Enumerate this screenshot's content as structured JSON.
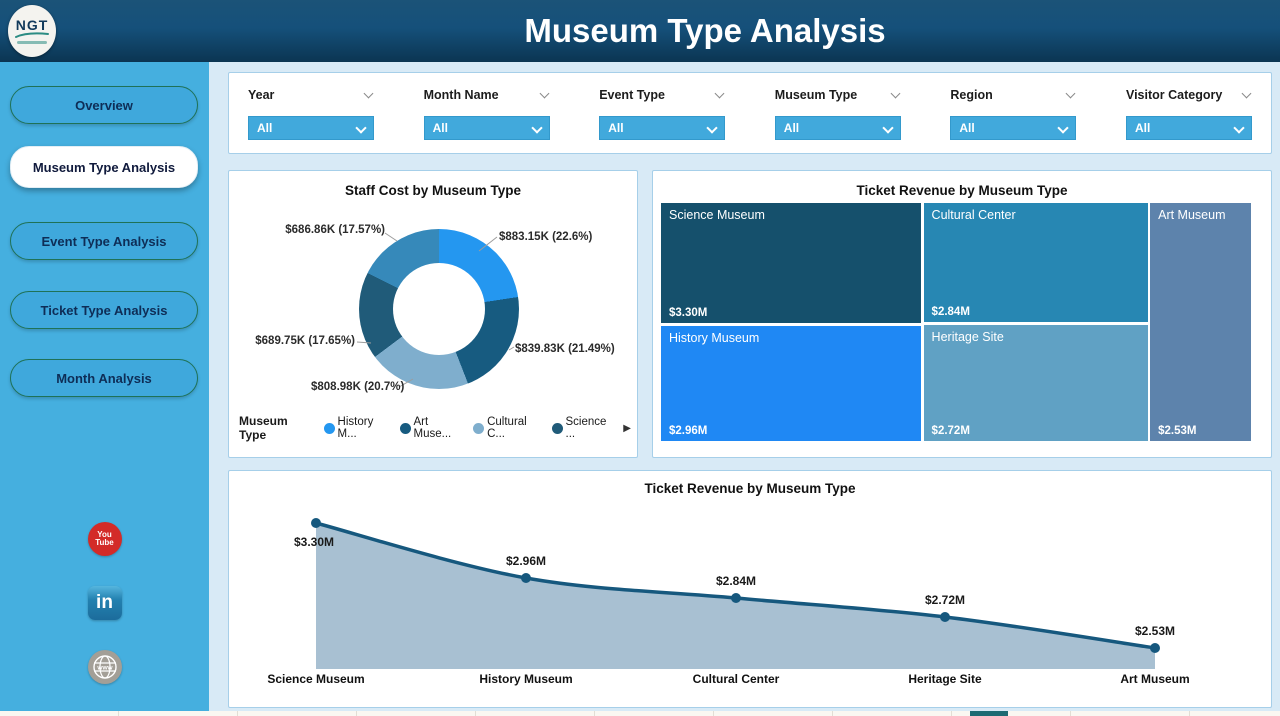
{
  "header": {
    "title": "Museum Type Analysis",
    "logo_text": "NGT"
  },
  "sidebar": {
    "items": [
      {
        "label": "Overview",
        "active": false
      },
      {
        "label": "Museum Type Analysis",
        "active": true
      },
      {
        "label": "Event Type Analysis",
        "active": false
      },
      {
        "label": "Ticket Type Analysis",
        "active": false
      },
      {
        "label": "Month Analysis",
        "active": false
      }
    ],
    "social_icons": [
      "youtube-icon",
      "linkedin-icon",
      "website-globe-icon"
    ]
  },
  "filters": {
    "items": [
      {
        "label": "Year",
        "value": "All"
      },
      {
        "label": "Month Name",
        "value": "All"
      },
      {
        "label": "Event Type",
        "value": "All"
      },
      {
        "label": "Museum Type",
        "value": "All"
      },
      {
        "label": "Region",
        "value": "All"
      },
      {
        "label": "Visitor Category",
        "value": "All"
      }
    ]
  },
  "chart_data": [
    {
      "id": "staff-cost-donut",
      "type": "pie",
      "title": "Staff Cost by Museum Type",
      "legend_title": "Museum Type",
      "legend_position": "bottom",
      "legend_overflow_arrow": "▶",
      "slices": [
        {
          "name": "History M...",
          "label": "$883.15K (22.6%)",
          "value_k": 883.15,
          "pct": 22.6,
          "color": "#2497F0"
        },
        {
          "name": "Art Muse...",
          "label": "$839.83K (21.49%)",
          "value_k": 839.83,
          "pct": 21.49,
          "color": "#175B80"
        },
        {
          "name": "Cultural C...",
          "label": "$808.98K (20.7%)",
          "value_k": 808.98,
          "pct": 20.7,
          "color": "#7FAECD"
        },
        {
          "name": "Science ...",
          "label": "$689.75K (17.65%)",
          "value_k": 689.75,
          "pct": 17.65,
          "color": "#205B79"
        },
        {
          "name": "",
          "label": "$686.86K (17.57%)",
          "value_k": 686.86,
          "pct": 17.57,
          "color": "#3689BA"
        }
      ]
    },
    {
      "id": "ticket-revenue-treemap",
      "type": "treemap",
      "title": "Ticket Revenue by Museum Type",
      "tiles": [
        {
          "name": "Science Museum",
          "label": "$3.30M",
          "value_m": 3.3,
          "color": "#15506C"
        },
        {
          "name": "History Museum",
          "label": "$2.96M",
          "value_m": 2.96,
          "color": "#1F88F4"
        },
        {
          "name": "Cultural Center",
          "label": "$2.84M",
          "value_m": 2.84,
          "color": "#2787B3"
        },
        {
          "name": "Heritage Site",
          "label": "$2.72M",
          "value_m": 2.72,
          "color": "#60A1C4"
        },
        {
          "name": "Art Museum",
          "label": "$2.53M",
          "value_m": 2.53,
          "color": "#5D83AC"
        }
      ]
    },
    {
      "id": "ticket-revenue-area",
      "type": "area",
      "title": "Ticket Revenue by Museum Type",
      "categories": [
        "Science Museum",
        "History Museum",
        "Cultural Center",
        "Heritage Site",
        "Art Museum"
      ],
      "values_m": [
        3.3,
        2.96,
        2.84,
        2.72,
        2.53
      ],
      "labels": [
        "$3.30M",
        "$2.96M",
        "$2.84M",
        "$2.72M",
        "$2.53M"
      ],
      "line_color": "#16587E",
      "fill_color": "#A8C0D2",
      "grid": false,
      "legend_position": "none"
    }
  ],
  "colors": {
    "header_top": "#1B5378",
    "header_bottom": "#0B3552",
    "sidebar": "#45AFDF",
    "nav_fill": "#3FA8DC",
    "nav_border": "#1F7257",
    "nav_text": "#0E2D56",
    "main_bg": "#D8EAF6",
    "panel_border": "#A6CFE9",
    "dropdown_blue": "#41A9DC",
    "youtube_red": "#D32B28",
    "linkedin_blue": "#2381B0",
    "globe_gray": "#A39F97",
    "tab_accent_teal": "#1D6A73"
  }
}
